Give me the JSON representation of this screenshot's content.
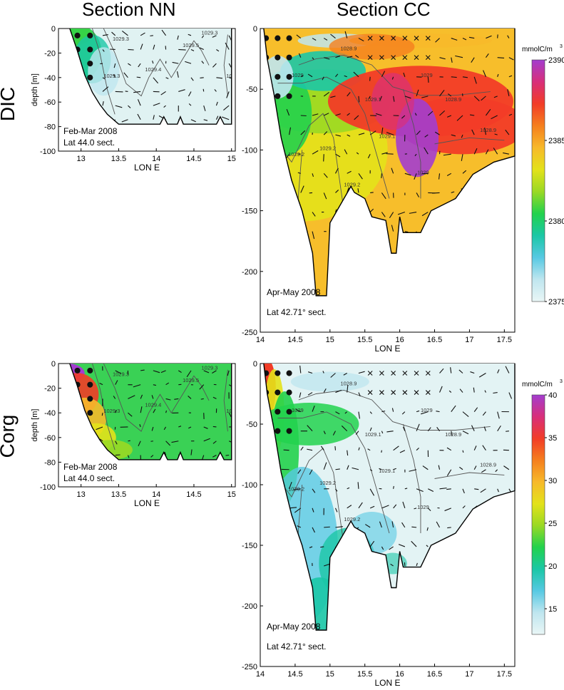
{
  "titles": {
    "left": "Section NN",
    "right": "Section CC",
    "row_top": "DIC",
    "row_bottom": "Corg"
  },
  "chart_data": [
    {
      "id": "dic-nn",
      "type": "heatmap",
      "variable": "DIC",
      "xlabel": "LON E",
      "ylabel": "depth [m]",
      "xlim": [
        12.7,
        15.05
      ],
      "ylim": [
        -100,
        0
      ],
      "xticks": [
        "13",
        "13.5",
        "14",
        "14.5",
        "15"
      ],
      "yticks": [
        "0",
        "-20",
        "-40",
        "-60",
        "-80",
        "-100"
      ],
      "annotations": [
        "Feb-Mar 2008",
        "Lat 44.0 sect."
      ],
      "isopycnals": [
        "1029.3",
        "1029.3",
        "1029.4",
        "1029.5",
        "1029.3",
        "1029.3"
      ],
      "bottom_profile": [
        [
          12.85,
          0
        ],
        [
          12.95,
          -18
        ],
        [
          13.05,
          -38
        ],
        [
          13.15,
          -52
        ],
        [
          13.25,
          -62
        ],
        [
          13.35,
          -70
        ],
        [
          13.5,
          -78
        ],
        [
          14.05,
          -78
        ],
        [
          14.1,
          -72
        ],
        [
          14.15,
          -78
        ],
        [
          14.28,
          -78
        ],
        [
          14.32,
          -72
        ],
        [
          14.36,
          -78
        ],
        [
          14.8,
          -78
        ],
        [
          14.85,
          -72
        ],
        [
          14.9,
          -78
        ],
        [
          15.0,
          -78
        ],
        [
          15.0,
          0
        ]
      ],
      "coastal_anomaly_lon": 13.2,
      "background": "#e0f2f2"
    },
    {
      "id": "dic-cc",
      "type": "heatmap",
      "variable": "DIC",
      "xlabel": "LON E",
      "ylabel": "",
      "xlim": [
        14.0,
        17.65
      ],
      "ylim": [
        -250,
        0
      ],
      "xticks": [
        "14",
        "14.5",
        "15",
        "15.5",
        "16",
        "16.5",
        "17",
        "17.5"
      ],
      "yticks": [
        "0",
        "-50",
        "-100",
        "-150",
        "-200",
        "-250"
      ],
      "annotations": [
        "Apr-May 2008",
        "Lat 42.71° sect."
      ],
      "isopycnals": [
        "1028.9",
        "1029",
        "1029.2",
        "1029.2",
        "1029.1",
        "1029",
        "1028.9",
        "1029",
        "1029.1",
        "1029.2",
        "1028.9"
      ],
      "colorbar": {
        "unit": "mmolC/m",
        "unit_power": "3",
        "min": 2375,
        "max": 2390,
        "ticks": [
          "2390",
          "2385",
          "2380",
          "2375"
        ]
      },
      "bottom_profile": [
        [
          14.05,
          0
        ],
        [
          14.1,
          -25
        ],
        [
          14.2,
          -55
        ],
        [
          14.3,
          -90
        ],
        [
          14.45,
          -125
        ],
        [
          14.6,
          -150
        ],
        [
          14.75,
          -185
        ],
        [
          14.8,
          -220
        ],
        [
          14.95,
          -220
        ],
        [
          15.0,
          -160
        ],
        [
          15.3,
          -130
        ],
        [
          15.35,
          -135
        ],
        [
          15.5,
          -140
        ],
        [
          15.6,
          -155
        ],
        [
          15.8,
          -158
        ],
        [
          15.88,
          -185
        ],
        [
          15.95,
          -185
        ],
        [
          16.0,
          -155
        ],
        [
          16.05,
          -168
        ],
        [
          16.3,
          -168
        ],
        [
          16.45,
          -150
        ],
        [
          16.8,
          -140
        ],
        [
          17.05,
          -120
        ],
        [
          17.35,
          -110
        ],
        [
          17.65,
          -105
        ],
        [
          17.65,
          0
        ]
      ],
      "background": "#f7be2b"
    },
    {
      "id": "corg-nn",
      "type": "heatmap",
      "variable": "Corg",
      "xlabel": "LON E",
      "ylabel": "depth [m]",
      "xlim": [
        12.7,
        15.05
      ],
      "ylim": [
        -100,
        0
      ],
      "xticks": [
        "13",
        "13.5",
        "14",
        "14.5",
        "15"
      ],
      "yticks": [
        "0",
        "-20",
        "-40",
        "-60",
        "-80",
        "-100"
      ],
      "annotations": [
        "Feb-Mar 2008",
        "Lat 44.0 sect."
      ],
      "isopycnals": [
        "1029.3",
        "1029.3",
        "1029.4",
        "1029.5",
        "1029.3",
        "1029.3"
      ],
      "bottom_profile": [
        [
          12.85,
          0
        ],
        [
          12.95,
          -18
        ],
        [
          13.05,
          -38
        ],
        [
          13.15,
          -52
        ],
        [
          13.25,
          -62
        ],
        [
          13.35,
          -70
        ],
        [
          13.5,
          -78
        ],
        [
          14.05,
          -78
        ],
        [
          14.1,
          -72
        ],
        [
          14.15,
          -78
        ],
        [
          14.28,
          -78
        ],
        [
          14.32,
          -72
        ],
        [
          14.36,
          -78
        ],
        [
          14.8,
          -78
        ],
        [
          14.85,
          -72
        ],
        [
          14.9,
          -78
        ],
        [
          15.0,
          -78
        ],
        [
          15.0,
          0
        ]
      ],
      "background": "#3ad155"
    },
    {
      "id": "corg-cc",
      "type": "heatmap",
      "variable": "Corg",
      "xlabel": "LON E",
      "ylabel": "",
      "xlim": [
        14.0,
        17.65
      ],
      "ylim": [
        -250,
        0
      ],
      "xticks": [
        "14",
        "14.5",
        "15",
        "15.5",
        "16",
        "16.5",
        "17",
        "17.5"
      ],
      "yticks": [
        "0",
        "-50",
        "-100",
        "-150",
        "-200",
        "-250"
      ],
      "annotations": [
        "Apr-May 2008",
        "Lat 42.71° sect."
      ],
      "isopycnals": [
        "1028.9",
        "1029",
        "1029.2",
        "1029.2",
        "1029.1",
        "1029",
        "1028.9",
        "1029",
        "1029.1",
        "1029.2",
        "1028.9"
      ],
      "colorbar": {
        "unit": "mmolC/m",
        "unit_power": "3",
        "min": 12,
        "max": 40,
        "ticks": [
          "40",
          "35",
          "30",
          "25",
          "20",
          "15"
        ]
      },
      "bottom_profile": [
        [
          14.05,
          0
        ],
        [
          14.1,
          -25
        ],
        [
          14.2,
          -55
        ],
        [
          14.3,
          -90
        ],
        [
          14.45,
          -125
        ],
        [
          14.6,
          -150
        ],
        [
          14.75,
          -185
        ],
        [
          14.8,
          -220
        ],
        [
          14.95,
          -220
        ],
        [
          15.0,
          -160
        ],
        [
          15.3,
          -130
        ],
        [
          15.35,
          -135
        ],
        [
          15.5,
          -140
        ],
        [
          15.6,
          -155
        ],
        [
          15.8,
          -158
        ],
        [
          15.88,
          -185
        ],
        [
          15.95,
          -185
        ],
        [
          16.0,
          -155
        ],
        [
          16.05,
          -168
        ],
        [
          16.3,
          -168
        ],
        [
          16.45,
          -150
        ],
        [
          16.8,
          -140
        ],
        [
          17.05,
          -120
        ],
        [
          17.35,
          -110
        ],
        [
          17.65,
          -105
        ],
        [
          17.65,
          0
        ]
      ],
      "background": "#e3f3f4"
    }
  ],
  "colormap": [
    "#e9f6f6",
    "#bfe6ef",
    "#57c9e3",
    "#1bc7a6",
    "#22d24d",
    "#9ad924",
    "#e3e21a",
    "#f7b92a",
    "#f57f1e",
    "#f23c27",
    "#d82f7a",
    "#a33dcf"
  ]
}
